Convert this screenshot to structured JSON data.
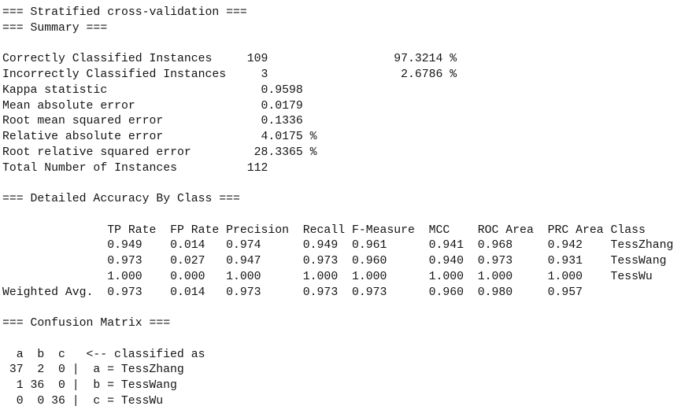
{
  "headings": {
    "stratified": "=== Stratified cross-validation ==="
  },
  "summary": {
    "heading": "=== Summary ===",
    "rows": [
      {
        "label": "Correctly Classified Instances",
        "value": "109",
        "pct": "97.3214 %"
      },
      {
        "label": "Incorrectly Classified Instances",
        "value": "3",
        "pct": "2.6786 %"
      },
      {
        "label": "Kappa statistic",
        "value": "0.9598"
      },
      {
        "label": "Mean absolute error",
        "value": "0.0179"
      },
      {
        "label": "Root mean squared error",
        "value": "0.1336"
      },
      {
        "label": "Relative absolute error",
        "value": "4.0175 %"
      },
      {
        "label": "Root relative squared error",
        "value": "28.3365 %"
      },
      {
        "label": "Total Number of Instances",
        "value": "112"
      }
    ]
  },
  "detailed_accuracy": {
    "heading": "=== Detailed Accuracy By Class ===",
    "columns": [
      "TP Rate",
      "FP Rate",
      "Precision",
      "Recall",
      "F-Measure",
      "MCC",
      "ROC Area",
      "PRC Area",
      "Class"
    ],
    "rows": [
      {
        "label": "",
        "tp_rate": "0.949",
        "fp_rate": "0.014",
        "precision": "0.974",
        "recall": "0.949",
        "f_measure": "0.961",
        "mcc": "0.941",
        "roc_area": "0.968",
        "prc_area": "0.942",
        "class": "TessZhang"
      },
      {
        "label": "",
        "tp_rate": "0.973",
        "fp_rate": "0.027",
        "precision": "0.947",
        "recall": "0.973",
        "f_measure": "0.960",
        "mcc": "0.940",
        "roc_area": "0.973",
        "prc_area": "0.931",
        "class": "TessWang"
      },
      {
        "label": "",
        "tp_rate": "1.000",
        "fp_rate": "0.000",
        "precision": "1.000",
        "recall": "1.000",
        "f_measure": "1.000",
        "mcc": "1.000",
        "roc_area": "1.000",
        "prc_area": "1.000",
        "class": "TessWu"
      },
      {
        "label": "Weighted Avg.",
        "tp_rate": "0.973",
        "fp_rate": "0.014",
        "precision": "0.973",
        "recall": "0.973",
        "f_measure": "0.973",
        "mcc": "0.960",
        "roc_area": "0.980",
        "prc_area": "0.957",
        "class": ""
      }
    ]
  },
  "confusion_matrix": {
    "heading": "=== Confusion Matrix ===",
    "col_labels": [
      "a",
      "b",
      "c"
    ],
    "arrow_label": "<-- classified as",
    "separator": "|",
    "rows": [
      {
        "cells": [
          "37",
          "2",
          "0"
        ],
        "assignment": "a = TessZhang"
      },
      {
        "cells": [
          "1",
          "36",
          "0"
        ],
        "assignment": "b = TessWang"
      },
      {
        "cells": [
          "0",
          "0",
          "36"
        ],
        "assignment": "c = TessWu"
      }
    ]
  }
}
